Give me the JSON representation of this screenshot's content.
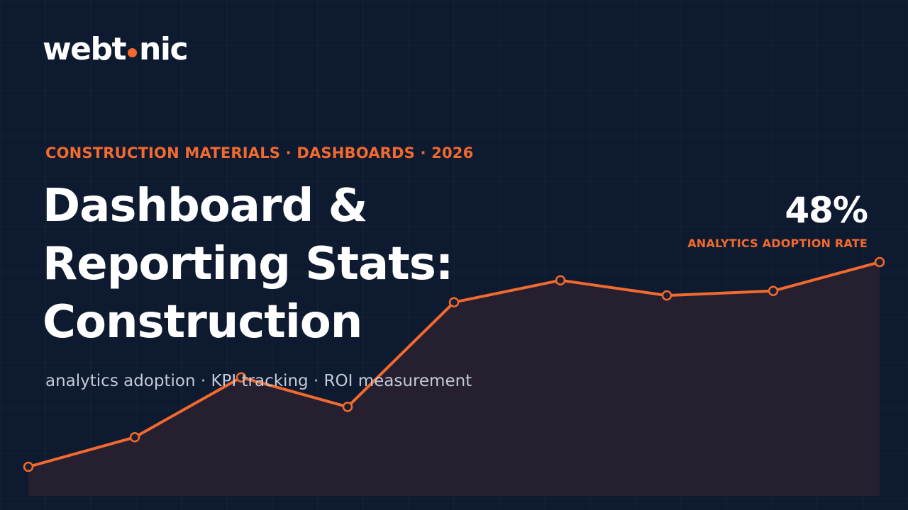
{
  "brand": {
    "logo_pre": "webt",
    "logo_post": "nic",
    "accent_color": "#f26a2e",
    "background_color": "#0e1a30"
  },
  "eyebrow": "CONSTRUCTION MATERIALS · DASHBOARDS · 2026",
  "headline": {
    "line1": "Dashboard &",
    "line2": "Reporting Stats:",
    "line3": "Construction"
  },
  "subtitle": "analytics adoption · KPI tracking · ROI measurement",
  "stat": {
    "value": "48%",
    "label": "ANALYTICS ADOPTION RATE"
  },
  "chart_data": {
    "type": "area",
    "x": [
      1,
      2,
      3,
      4,
      5,
      6,
      7,
      8,
      9
    ],
    "values": [
      0.6,
      0.99,
      1.78,
      1.39,
      2.77,
      3.06,
      2.86,
      2.92,
      3.3
    ],
    "title": "",
    "xlabel": "",
    "ylabel": "",
    "grid": true,
    "line_color": "#f26a2e"
  }
}
